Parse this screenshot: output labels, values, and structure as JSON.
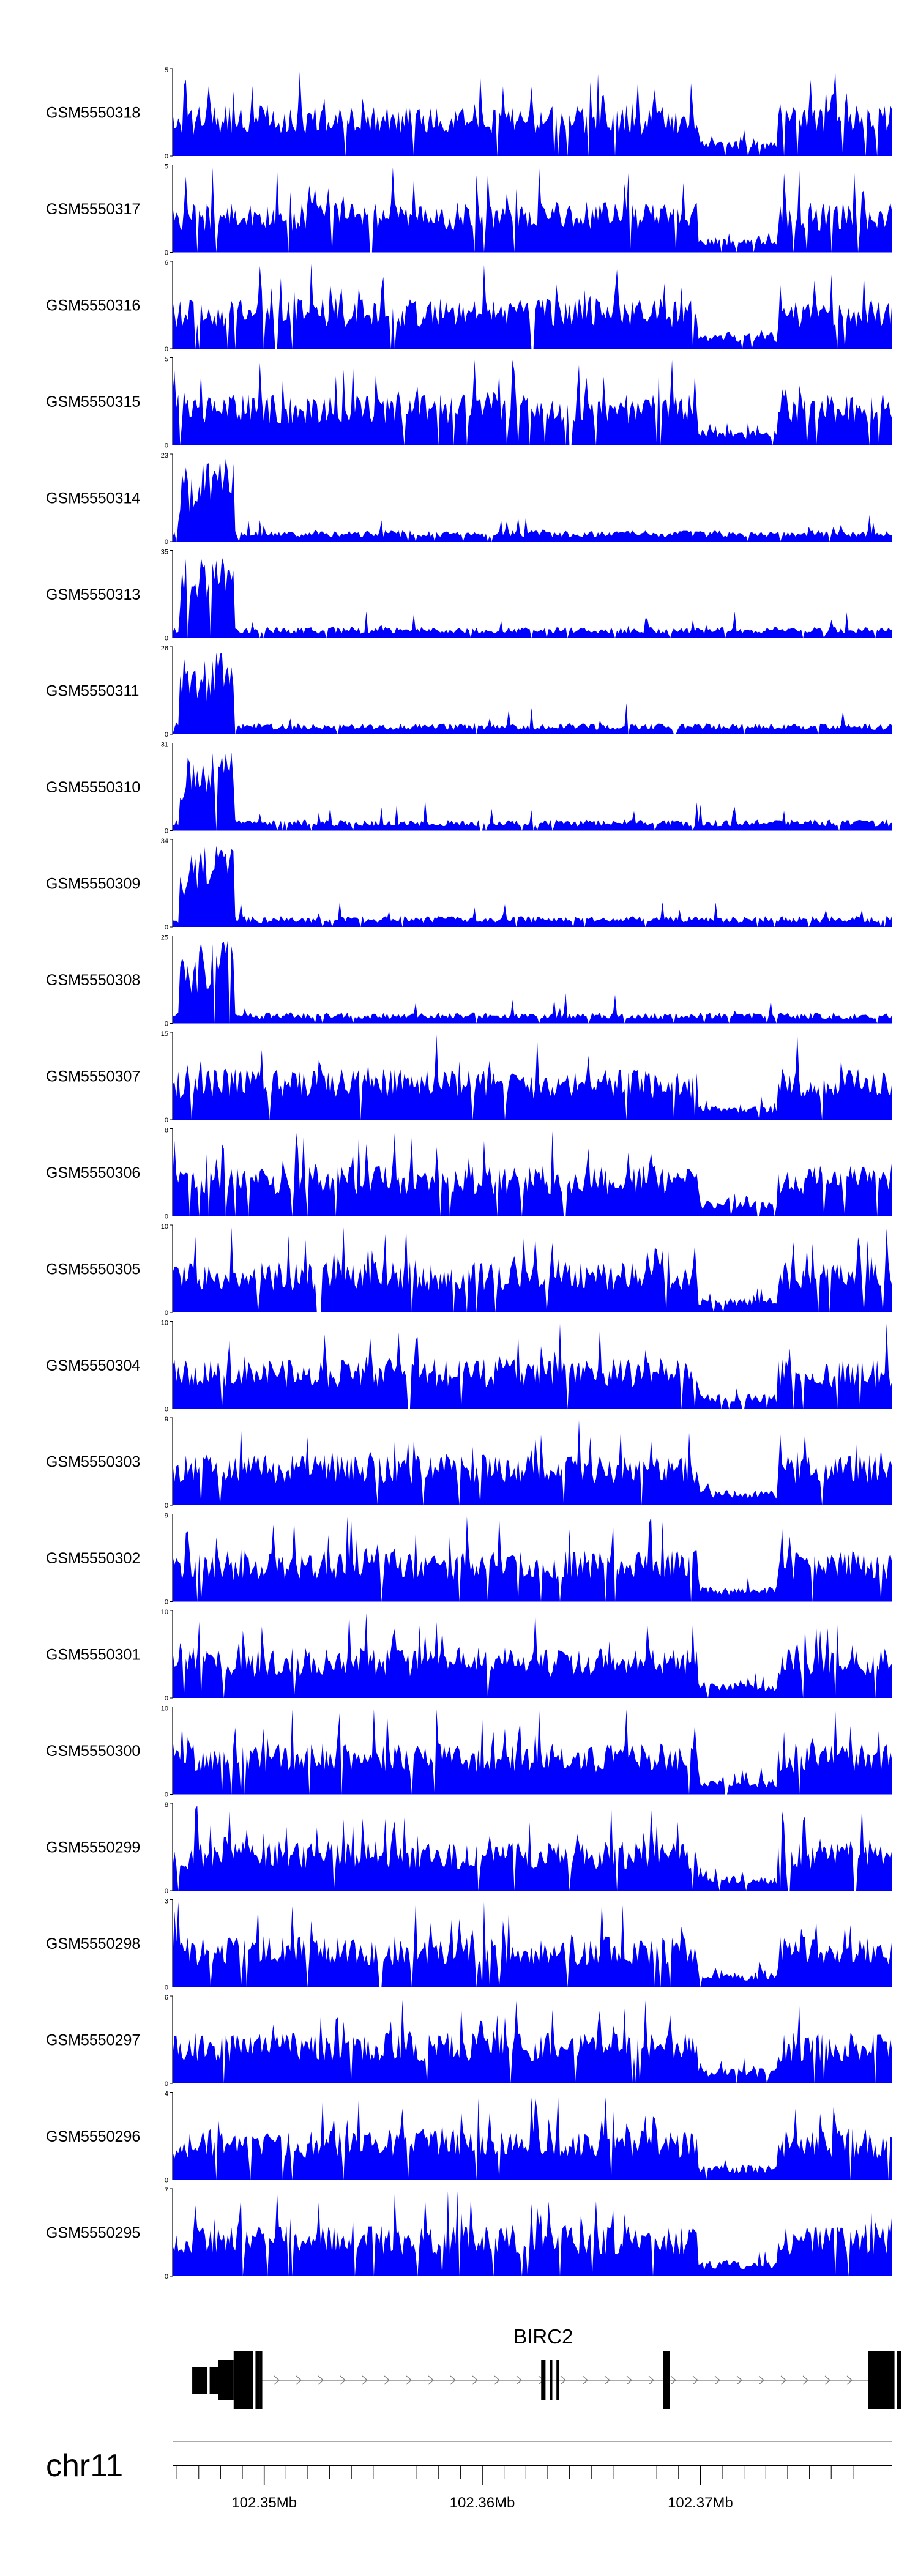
{
  "chart_data": {
    "type": "area",
    "tracks": [
      {
        "name": "GSM5550318",
        "ymax": "5",
        "ymin": "0"
      },
      {
        "name": "GSM5550317",
        "ymax": "5",
        "ymin": "0"
      },
      {
        "name": "GSM5550316",
        "ymax": "6",
        "ymin": "0"
      },
      {
        "name": "GSM5550315",
        "ymax": "5",
        "ymin": "0"
      },
      {
        "name": "GSM5550314",
        "ymax": "23",
        "ymin": "0"
      },
      {
        "name": "GSM5550313",
        "ymax": "35",
        "ymin": "0"
      },
      {
        "name": "GSM5550311",
        "ymax": "26",
        "ymin": "0"
      },
      {
        "name": "GSM5550310",
        "ymax": "31",
        "ymin": "0"
      },
      {
        "name": "GSM5550309",
        "ymax": "34",
        "ymin": "0"
      },
      {
        "name": "GSM5550308",
        "ymax": "25",
        "ymin": "0"
      },
      {
        "name": "GSM5550307",
        "ymax": "15",
        "ymin": "0"
      },
      {
        "name": "GSM5550306",
        "ymax": "8",
        "ymin": "0"
      },
      {
        "name": "GSM5550305",
        "ymax": "10",
        "ymin": "0"
      },
      {
        "name": "GSM5550304",
        "ymax": "10",
        "ymin": "0"
      },
      {
        "name": "GSM5550303",
        "ymax": "9",
        "ymin": "0"
      },
      {
        "name": "GSM5550302",
        "ymax": "9",
        "ymin": "0"
      },
      {
        "name": "GSM5550301",
        "ymax": "10",
        "ymin": "0"
      },
      {
        "name": "GSM5550300",
        "ymax": "10",
        "ymin": "0"
      },
      {
        "name": "GSM5550299",
        "ymax": "8",
        "ymin": "0"
      },
      {
        "name": "GSM5550298",
        "ymax": "3",
        "ymin": "0"
      },
      {
        "name": "GSM5550297",
        "ymax": "6",
        "ymin": "0"
      },
      {
        "name": "GSM5550296",
        "ymax": "4",
        "ymin": "0"
      },
      {
        "name": "GSM5550295",
        "ymax": "7",
        "ymin": "0"
      }
    ],
    "gene": {
      "name": "BIRC2",
      "exons_mb": [
        [
          102.3467,
          102.3474
        ],
        [
          102.3475,
          102.3479
        ],
        [
          102.3479,
          102.3486
        ],
        [
          102.3486,
          102.3495
        ],
        [
          102.3496,
          102.3498
        ],
        [
          102.3498,
          102.3499
        ],
        [
          102.3627,
          102.3629
        ],
        [
          102.3631,
          102.3632
        ],
        [
          102.3634,
          102.3635
        ],
        [
          102.3683,
          102.3686
        ],
        [
          102.3777,
          102.3789
        ],
        [
          102.379,
          102.3792
        ]
      ],
      "line_start_mb": 102.3499,
      "line_end_mb": 102.3777
    },
    "axis": {
      "chromosome": "chr11",
      "x_range_mb": [
        102.3458,
        102.3788
      ],
      "ticks": [
        {
          "value": 102.35,
          "label": "102.35Mb"
        },
        {
          "value": 102.36,
          "label": "102.36Mb"
        },
        {
          "value": 102.37,
          "label": "102.37Mb"
        }
      ]
    },
    "colors": {
      "signal": "#0000ff",
      "axis": "#000000",
      "baseline": "#aaaaaa",
      "intron": "#777777"
    }
  }
}
